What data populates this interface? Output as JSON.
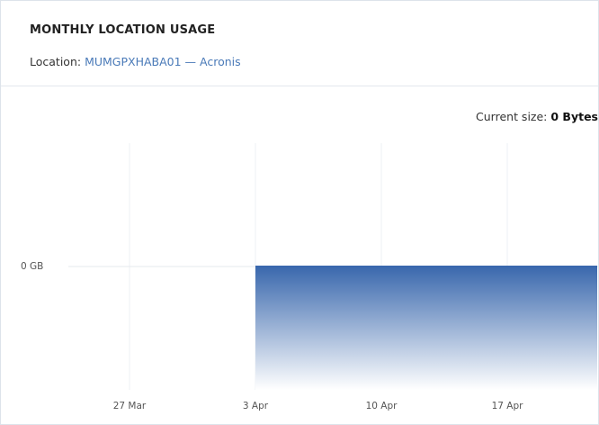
{
  "header": {
    "title": "MONTHLY LOCATION USAGE",
    "location_label": "Location:",
    "location_link": "MUMGPXHABA01 — Acronis"
  },
  "current_size": {
    "label": "Current size:",
    "value": "0 Bytes"
  },
  "chart_data": {
    "type": "area",
    "categories": [
      null,
      null,
      null,
      "27 Mar",
      null,
      null,
      null,
      null,
      null,
      null,
      "3 Apr",
      null,
      null,
      null,
      null,
      null,
      null,
      "10 Apr",
      null,
      null,
      null,
      null,
      null,
      null,
      "17 Apr",
      null,
      null,
      null,
      null,
      null
    ],
    "values": [
      null,
      null,
      null,
      null,
      null,
      null,
      null,
      null,
      null,
      null,
      0,
      0,
      0,
      0,
      0,
      0,
      0,
      0,
      0,
      0,
      0,
      0,
      0,
      0,
      0,
      0,
      0,
      0,
      0,
      0
    ],
    "color": "#3a68ad",
    "ylim": [
      -1,
      1
    ],
    "yticks": [
      {
        "value": 0,
        "label": "0 GB"
      }
    ],
    "grid": true
  }
}
